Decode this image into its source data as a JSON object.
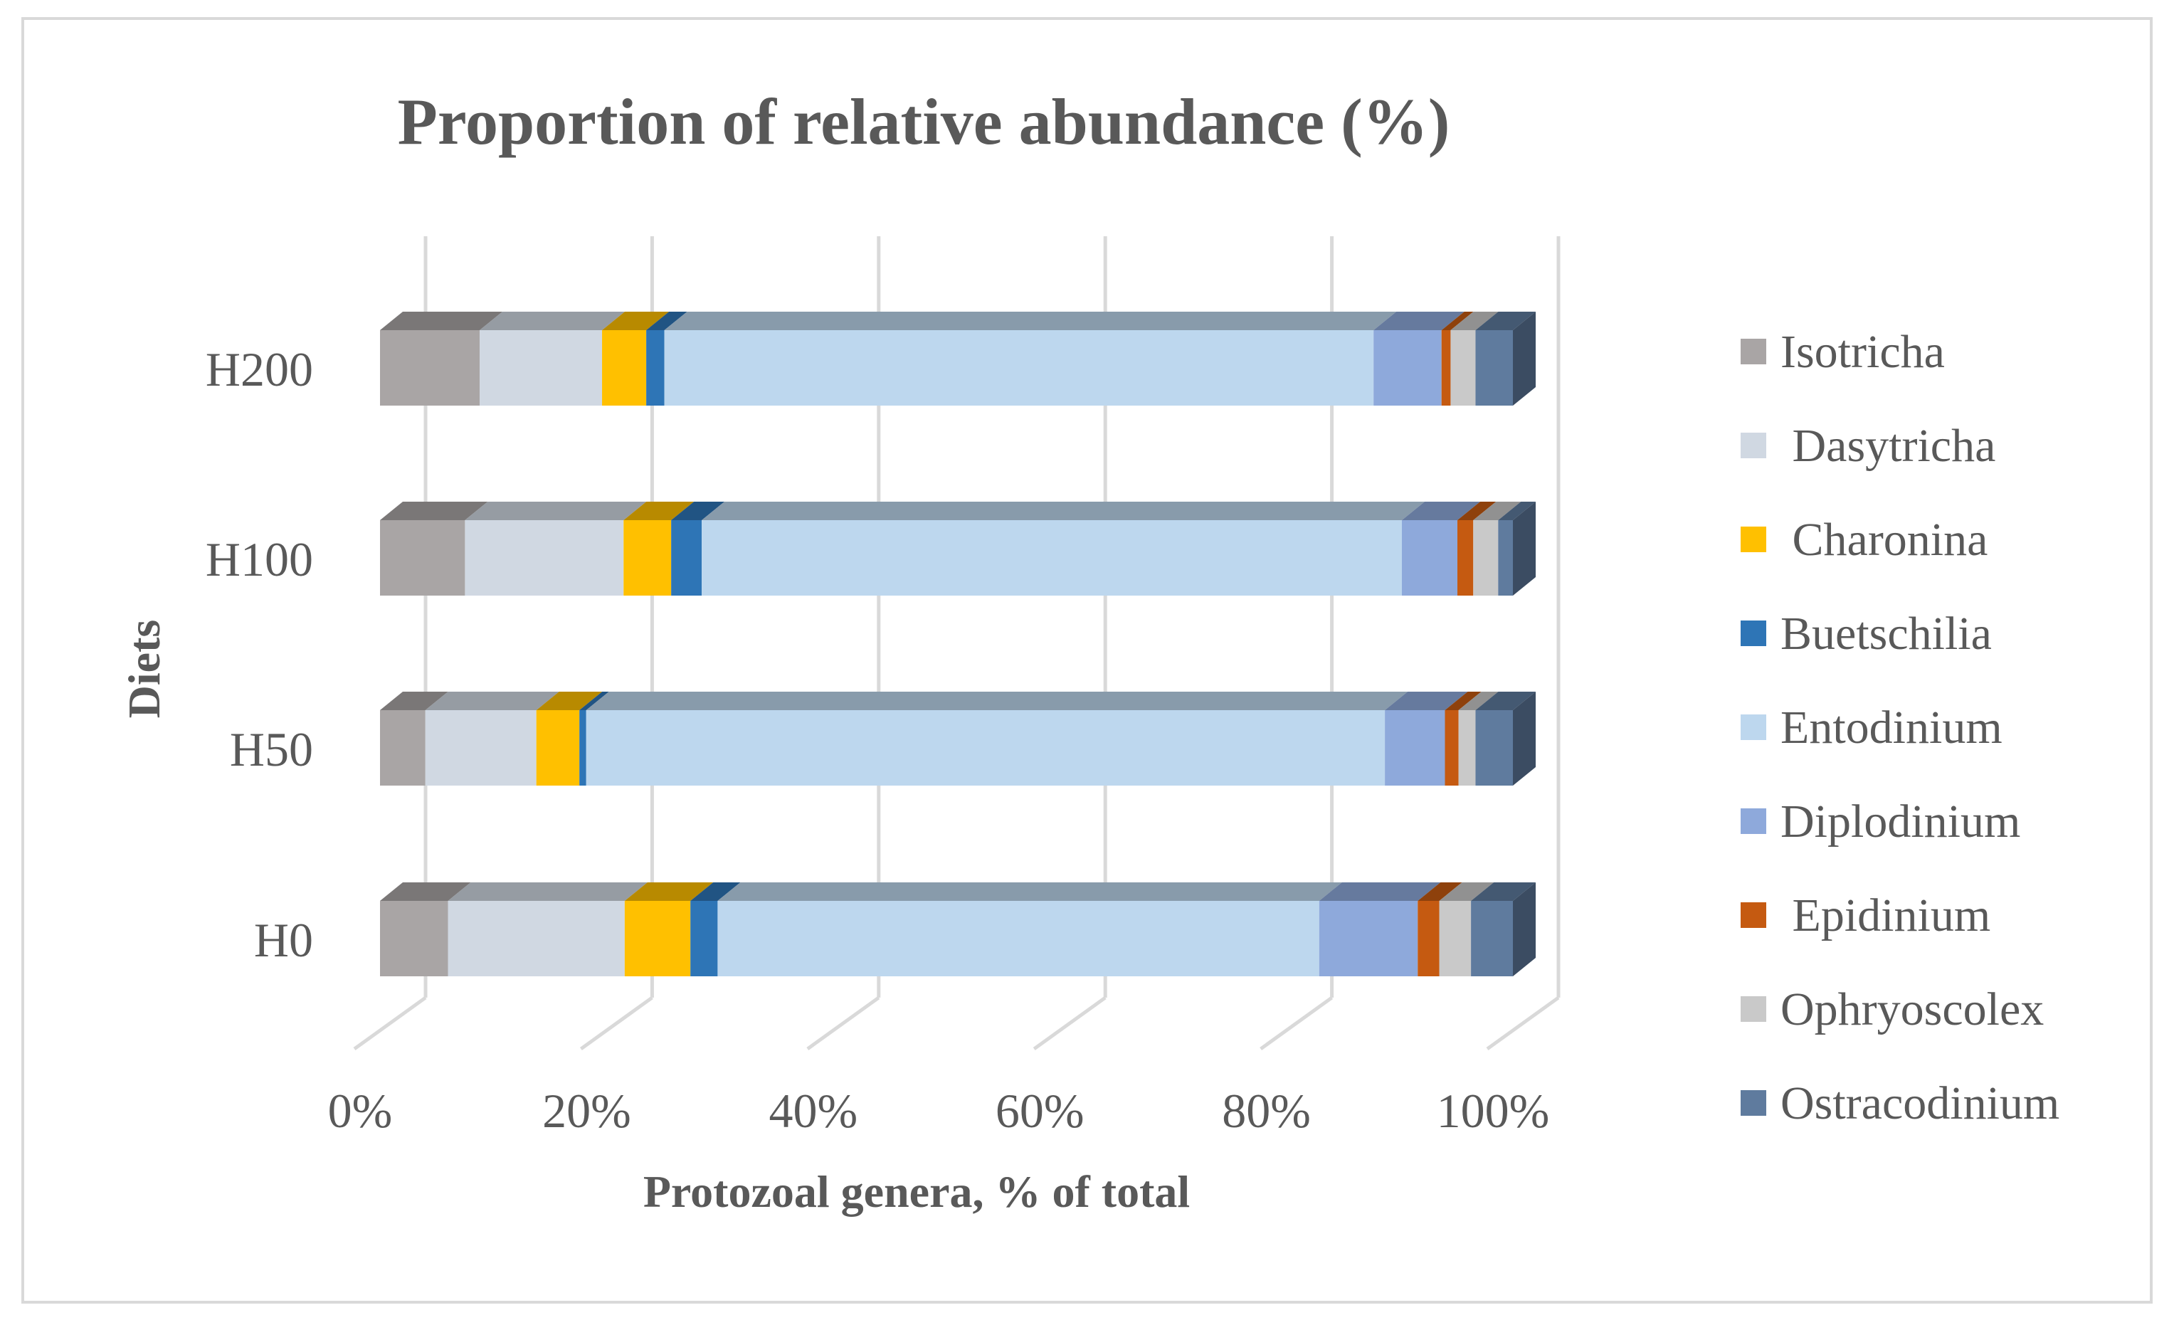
{
  "chart_data": {
    "type": "bar",
    "orientation": "horizontal",
    "stacked": "100%",
    "title": "Proportion of relative abundance (%)",
    "xlabel": "Protozoal genera, % of total",
    "ylabel": "Diets",
    "xlim": [
      0,
      100
    ],
    "x_ticks": [
      "0%",
      "20%",
      "40%",
      "60%",
      "80%",
      "100%"
    ],
    "categories": [
      "H0",
      "H50",
      "H100",
      "H200"
    ],
    "legend_position": "right",
    "series": [
      {
        "name": "Isotricha",
        "color": "#A9A5A5",
        "values": [
          6.0,
          4.0,
          7.5,
          8.8
        ]
      },
      {
        "name": " Dasytricha",
        "color": "#D0D8E2",
        "values": [
          15.6,
          9.8,
          14.0,
          10.8
        ]
      },
      {
        "name": " Charonina",
        "color": "#FFC000",
        "values": [
          5.8,
          3.8,
          4.2,
          3.9
        ]
      },
      {
        "name": "Buetschilia",
        "color": "#2E75B6",
        "values": [
          2.4,
          0.6,
          2.7,
          1.6
        ]
      },
      {
        "name": "Entodinium",
        "color": "#BDD7EE",
        "values": [
          53.1,
          70.5,
          61.8,
          62.6
        ]
      },
      {
        "name": "Diplodinium",
        "color": "#8EA9DB",
        "values": [
          8.7,
          5.3,
          4.9,
          6.0
        ]
      },
      {
        "name": " Epidinium",
        "color": "#C55A11",
        "values": [
          1.9,
          1.2,
          1.4,
          0.8
        ]
      },
      {
        "name": "Ophryoscolex",
        "color": "#C9C9C9",
        "values": [
          2.8,
          1.5,
          2.2,
          2.2
        ]
      },
      {
        "name": "Ostracodinium",
        "color": "#5F7B9E",
        "values": [
          3.7,
          3.3,
          1.3,
          3.3
        ]
      }
    ]
  }
}
